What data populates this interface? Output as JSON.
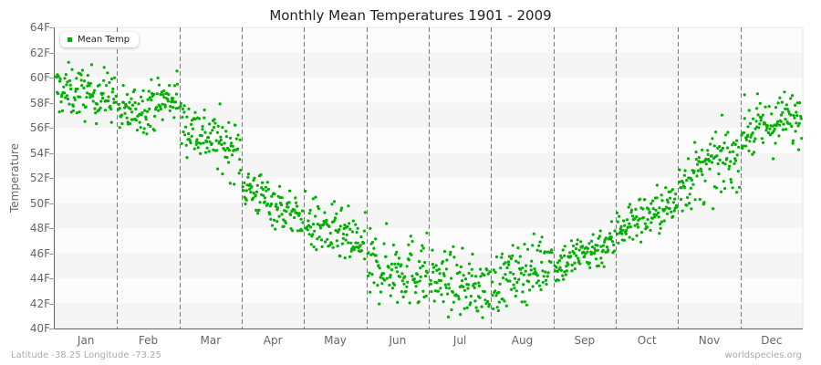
{
  "header": {
    "title": "Monthly Mean Temperatures 1901 - 2009"
  },
  "legend": {
    "label": "Mean Temp",
    "color": "#00b000"
  },
  "footer": {
    "location": "Latitude -38.25 Longitude -73.25",
    "source": "worldspecies.org"
  },
  "chart_data": {
    "type": "scatter",
    "title": "Monthly Mean Temperatures 1901 - 2009",
    "xlabel": "",
    "ylabel": "Temperature",
    "ylim": [
      40,
      64
    ],
    "yticks": [
      "40F",
      "42F",
      "44F",
      "46F",
      "48F",
      "50F",
      "52F",
      "54F",
      "56F",
      "58F",
      "60F",
      "62F",
      "64F"
    ],
    "categories": [
      "Jan",
      "Feb",
      "Mar",
      "Apr",
      "May",
      "Jun",
      "Jul",
      "Aug",
      "Sep",
      "Oct",
      "Nov",
      "Dec"
    ],
    "legend_position": "top-left",
    "grid": "alternating horizontal bands, dashed vertical month dividers",
    "series": [
      {
        "name": "Mean Temp",
        "color": "#00b000",
        "points_per_month": 109,
        "month_mean": [
          58.6,
          57.6,
          55.2,
          51.0,
          47.6,
          45.2,
          44.0,
          44.6,
          46.2,
          49.2,
          52.8,
          56.6
        ],
        "month_min": [
          54.5,
          54.8,
          51.5,
          47.8,
          44.0,
          40.2,
          40.5,
          40.3,
          43.8,
          46.4,
          49.0,
          53.5
        ],
        "month_max": [
          61.5,
          61.4,
          59.4,
          54.1,
          51.6,
          49.9,
          48.7,
          48.4,
          49.6,
          52.7,
          57.8,
          61.1
        ],
        "month_start_trend": [
          59.0,
          57.0,
          56.5,
          51.5,
          48.5,
          45.0,
          44.0,
          43.5,
          45.0,
          48.0,
          51.5,
          55.5
        ],
        "month_end_trend": [
          58.5,
          58.5,
          54.0,
          48.5,
          46.5,
          44.5,
          43.0,
          45.5,
          47.0,
          50.0,
          54.0,
          57.0
        ]
      }
    ]
  }
}
